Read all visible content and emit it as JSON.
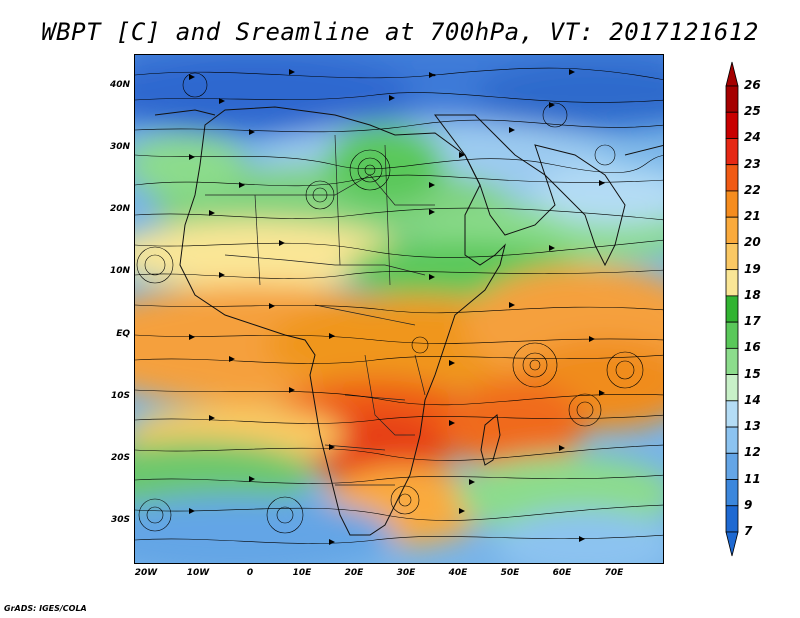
{
  "title": "WBPT [C] and Sreamline at 700hPa, VT: 2017121612",
  "footer": "GrADS: IGES/COLA",
  "lat_labels": [
    "40N",
    "30N",
    "20N",
    "10N",
    "EQ",
    "10S",
    "20S",
    "30S"
  ],
  "lon_labels": [
    "20W",
    "10W",
    "0",
    "10E",
    "20E",
    "30E",
    "40E",
    "50E",
    "60E",
    "70E"
  ],
  "colorbar": {
    "labels": [
      "26",
      "25",
      "24",
      "23",
      "22",
      "21",
      "20",
      "19",
      "18",
      "17",
      "16",
      "15",
      "14",
      "13",
      "12",
      "11",
      "9",
      "7"
    ],
    "colors": [
      "#a50000",
      "#c80000",
      "#e62814",
      "#f05a14",
      "#f58c1e",
      "#faaa3c",
      "#fac864",
      "#fae696",
      "#32b432",
      "#5ac85a",
      "#8cdc8c",
      "#c8f0c8",
      "#b4dcf5",
      "#8cc3f0",
      "#64a5e6",
      "#3c87dc",
      "#1e69d2"
    ]
  },
  "colors": {
    "land_border": "#111111",
    "streamline": "#000000"
  }
}
